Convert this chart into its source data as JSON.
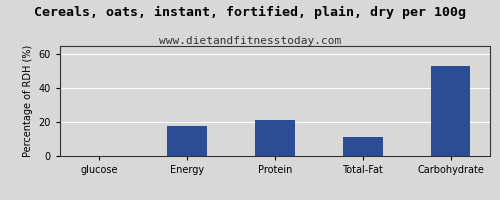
{
  "title": "Cereals, oats, instant, fortified, plain, dry per 100g",
  "subtitle": "www.dietandfitnesstoday.com",
  "categories": [
    "glucose",
    "Energy",
    "Protein",
    "Total-Fat",
    "Carbohydrate"
  ],
  "values": [
    0,
    18,
    21,
    11,
    53
  ],
  "bar_color": "#2b4d96",
  "ylabel": "Percentage of RDH (%)",
  "ylim": [
    0,
    65
  ],
  "yticks": [
    0,
    20,
    40,
    60
  ],
  "background_color": "#d8d8d8",
  "plot_bg_color": "#d8d8d8",
  "title_fontsize": 9.5,
  "subtitle_fontsize": 8,
  "tick_fontsize": 7,
  "ylabel_fontsize": 7
}
